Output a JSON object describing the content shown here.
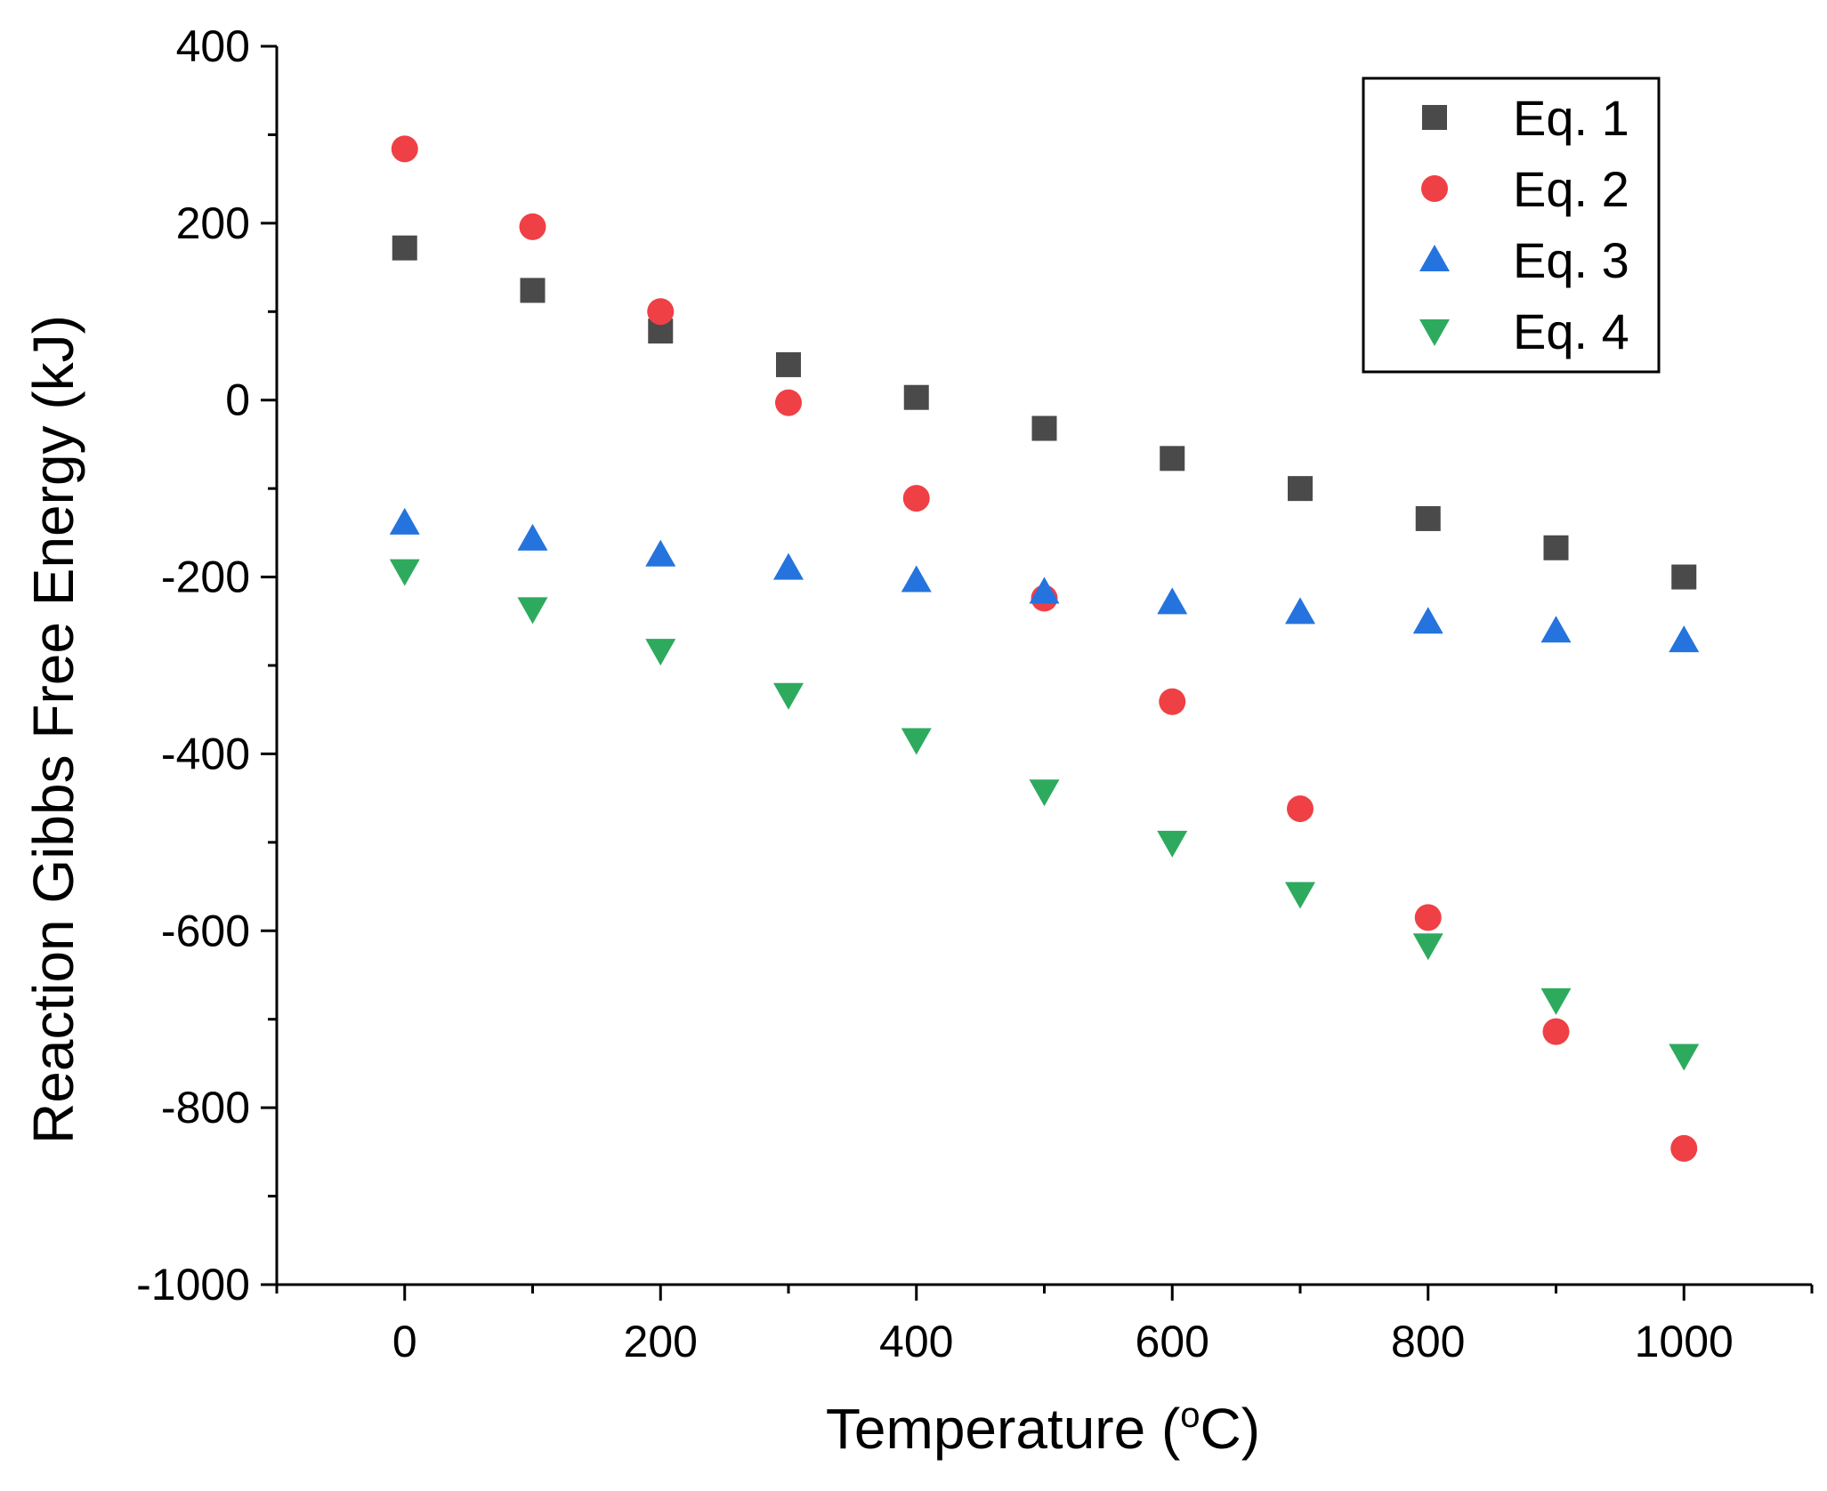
{
  "chart_data": {
    "type": "scatter",
    "title": "",
    "xlabel": "Temperature (",
    "xlabel_sup": "o",
    "xlabel_tail": "C)",
    "ylabel": "Reaction Gibbs Free Energy (kJ)",
    "xlim": [
      -100,
      1100
    ],
    "ylim": [
      -1000,
      400
    ],
    "xticks": [
      0,
      200,
      400,
      600,
      800,
      1000
    ],
    "xtick_labels": [
      "0",
      "200",
      "400",
      "600",
      "800",
      "1000"
    ],
    "xminor": [
      -100,
      100,
      300,
      500,
      700,
      900,
      1100
    ],
    "yticks": [
      400,
      200,
      0,
      -200,
      -400,
      -600,
      -800,
      -1000
    ],
    "ytick_labels": [
      "400",
      "200",
      "0",
      "-200",
      "-400",
      "-600",
      "-800",
      "-1000"
    ],
    "yminor": [
      300,
      100,
      -100,
      -300,
      -500,
      -700,
      -900
    ],
    "grid": false,
    "legend_position": "top-right",
    "x": [
      0,
      100,
      200,
      300,
      400,
      500,
      600,
      700,
      800,
      900,
      1000
    ],
    "series": [
      {
        "name": "Eq. 1",
        "marker": "square",
        "color": "#4a4a4a",
        "values": [
          172,
          124,
          78,
          40,
          3,
          -32,
          -66,
          -100,
          -134,
          -167,
          -200
        ]
      },
      {
        "name": "Eq. 2",
        "marker": "circle",
        "color": "#ef4045",
        "values": [
          284,
          196,
          100,
          -3,
          -111,
          -224,
          -341,
          -462,
          -585,
          -714,
          -846
        ]
      },
      {
        "name": "Eq. 3",
        "marker": "triangle-up",
        "color": "#2573de",
        "values": [
          -139,
          -157,
          -175,
          -190,
          -204,
          -217,
          -229,
          -240,
          -251,
          -261,
          -272
        ]
      },
      {
        "name": "Eq. 4",
        "marker": "triangle-down",
        "color": "#2eaa5e",
        "values": [
          -193,
          -236,
          -283,
          -333,
          -384,
          -442,
          -500,
          -558,
          -616,
          -678,
          -741
        ]
      }
    ]
  }
}
